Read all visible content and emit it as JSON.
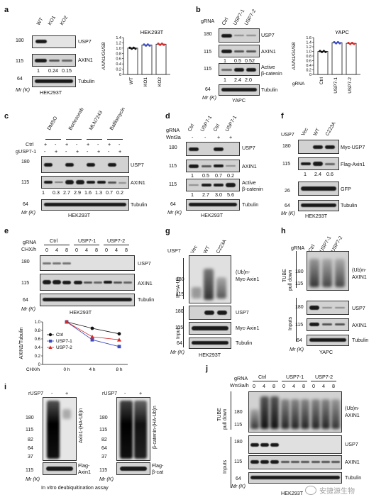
{
  "panels": {
    "a": {
      "letter": "a",
      "lanes": [
        "WT",
        "KO1",
        "KO2"
      ],
      "markers": [
        "180",
        "115",
        "64"
      ],
      "rows": [
        "USP7",
        "AXIN1",
        "Tubulin"
      ],
      "quant": [
        "1",
        "0.24",
        "0.15"
      ],
      "mr": "Mr (K)",
      "cell": "HEK293T",
      "chart_title": "HEK293T",
      "ylabel": "AXIN1/GUSB"
    },
    "b": {
      "letter": "b",
      "grna": "gRNA",
      "lanes": [
        "Ctrl",
        "USP7-1",
        "USP7-2"
      ],
      "markers": [
        "180",
        "115",
        "115",
        "64"
      ],
      "rows": [
        "USP7",
        "AXIN1",
        "Active",
        "β-catenin",
        "Tubulin"
      ],
      "quant1": [
        "1",
        "0.5",
        "0.52"
      ],
      "quant2": [
        "1",
        "2.4",
        "2.0"
      ],
      "mr": "Mr (K)",
      "cell": "YAPC",
      "chart_title": "YAPC",
      "ylabel": "AXIN1/GUSB",
      "xgrna": "gRNA"
    },
    "c": {
      "letter": "c",
      "drugs": [
        "DMSO",
        "Bortezomib",
        "MLN7243",
        "Bafilomycin"
      ],
      "ctrl_label": "Ctrl",
      "g_label": "gUSP7-1",
      "signs_ctrl": [
        "+",
        "-",
        "+",
        "-",
        "+",
        "-",
        "+",
        "-"
      ],
      "signs_g": [
        "-",
        "+",
        "-",
        "+",
        "-",
        "+",
        "-",
        "+"
      ],
      "markers": [
        "180",
        "115",
        "64"
      ],
      "rows": [
        "USP7",
        "AXIN1",
        "Tubulin"
      ],
      "quant": [
        "1",
        "0.3",
        "2.7",
        "2.9",
        "1.6",
        "1.3",
        "0.7",
        "0.2"
      ],
      "mr": "Mr (K)",
      "cell": "HEK293T"
    },
    "d": {
      "letter": "d",
      "grna": "gRNA",
      "wnt": "Wnt3a",
      "lanes": [
        "Ctrl",
        "USP7-1",
        "Ctrl",
        "USP7-1"
      ],
      "wnt_signs": [
        "-",
        "-",
        "+",
        "+"
      ],
      "markers": [
        "180",
        "115",
        "115",
        "64"
      ],
      "rows": [
        "USP7",
        "AXIN1",
        "Active",
        "β-catenin",
        "Tubulin"
      ],
      "quant1": [
        "1",
        "0.5",
        "0.7",
        "0.2"
      ],
      "quant2": [
        "1",
        "2.7",
        "3.0",
        "5.6"
      ],
      "mr": "Mr (K)",
      "cell": "HEK293T"
    },
    "e": {
      "letter": "e",
      "grna": "gRNA",
      "chx": "CHX/h",
      "groups": [
        "Ctrl",
        "USP7-1",
        "USP7-2"
      ],
      "times": [
        "0",
        "4",
        "8",
        "0",
        "4",
        "8",
        "0",
        "4",
        "8"
      ],
      "markers": [
        "180",
        "115",
        "64"
      ],
      "rows": [
        "USP7",
        "AXIN1",
        "Tubulin"
      ],
      "mr": "Mr (K)",
      "cell": "HEK293T",
      "ylabel": "AXIN1/Tubulin",
      "ticks": [
        "1.0",
        "0.8",
        "0.6",
        "0.4",
        "0.2",
        "0"
      ],
      "xticks": [
        "0 h",
        "4 h",
        "8 h"
      ],
      "xlabel": "CHX/h",
      "legend": [
        "Ctrl",
        "USP7-1",
        "USP7-2"
      ]
    },
    "f": {
      "letter": "f",
      "usp7": "USP7",
      "lanes": [
        "Vec",
        "WT",
        "C223A"
      ],
      "markers": [
        "180",
        "115",
        "26",
        "64"
      ],
      "rows": [
        "Myc-USP7",
        "Flag-Axin1",
        "GFP",
        "Tubulin"
      ],
      "quant": [
        "1",
        "2.4",
        "0.6"
      ],
      "mr": "Mr (K)",
      "cell": "HEK293T"
    },
    "g": {
      "letter": "g",
      "usp7": "USP7",
      "lanes": [
        "Vec",
        "WT",
        "C223A"
      ],
      "ip": "IP:HA-Ub",
      "inputs": "Inputs",
      "markers_top": [
        "180",
        "115"
      ],
      "markers_bot": [
        "180",
        "115",
        "64"
      ],
      "ub": "(Ub)n-",
      "ub2": "Myc-Axin1",
      "rows": [
        "USP7",
        "Myc-Axin1",
        "Tubulin"
      ],
      "mr": "Mr (K)",
      "cell": "HEK293T"
    },
    "h": {
      "letter": "h",
      "grna": "gRNA",
      "lanes": [
        "Ctrl",
        "USP7-1",
        "USP7-2"
      ],
      "tube": "TUBE",
      "pulldown": "pull down",
      "inputs": "Inputs",
      "markers_top": [
        "180",
        "115"
      ],
      "markers_bot": [
        "180",
        "115",
        "64"
      ],
      "ub": "(Ub)n-",
      "ub2": "AXIN1",
      "rows": [
        "USP7",
        "AXIN1",
        "Tubulin"
      ],
      "mr": "Mr (K)",
      "cell": "YAPC"
    },
    "i": {
      "letter": "i",
      "rusp7": "rUSP7",
      "signs": [
        "-",
        "+"
      ],
      "markers": [
        "180",
        "115",
        "82",
        "64",
        "37"
      ],
      "markers_b": [
        "115"
      ],
      "left_side": "Axin1-(HA-Ub)n",
      "right_side": "β-catenin-(HA-Ub)n",
      "left_bot1": "Flag-",
      "left_bot2": "Axin1",
      "right_bot1": "Flag-",
      "right_bot2": "β-cat",
      "mr": "Mr (K)",
      "caption": "In vitro deubiquitination assay"
    },
    "j": {
      "letter": "j",
      "grna": "gRNA",
      "wnt": "Wnt3a/h",
      "groups": [
        "Ctrl",
        "USP7-1",
        "USP7-2"
      ],
      "times": [
        "0",
        "4",
        "8",
        "0",
        "4",
        "8",
        "0",
        "4",
        "8"
      ],
      "tube": "TUBE",
      "pulldown": "pull down",
      "inputs": "Inputs",
      "markers_top": [
        "180",
        "115"
      ],
      "markers_bot": [
        "180",
        "115",
        "64"
      ],
      "ub": "(Ub)n-",
      "ub2": "AXIN1",
      "rows": [
        "USP7",
        "AXIN1",
        "Tubulin"
      ],
      "mr": "Mr (K)",
      "cell": "HEK293T"
    }
  },
  "watermark": "安捷源生物",
  "chart_data": [
    {
      "type": "bar",
      "title": "HEK293T",
      "ylabel": "AXIN1/GUSB",
      "categories": [
        "WT",
        "KO1",
        "KO2"
      ],
      "values": [
        1.0,
        1.12,
        1.15
      ],
      "ylim": [
        0,
        1.4
      ],
      "yticks": [
        "0",
        "0.2",
        "0.4",
        "0.6",
        "0.8",
        "1.0",
        "1.2",
        "1.4"
      ],
      "colors": [
        "#111111",
        "#3b4bbf",
        "#d42a2a"
      ]
    },
    {
      "type": "bar",
      "title": "YAPC",
      "ylabel": "AXIN1/GUSB",
      "categories": [
        "Ctrl",
        "USP7-1",
        "USP7-2"
      ],
      "values": [
        1.0,
        1.38,
        1.35
      ],
      "ylim": [
        0,
        1.6
      ],
      "yticks": [
        "0",
        "0.2",
        "0.4",
        "0.6",
        "0.8",
        "1.0",
        "1.2",
        "1.4",
        "1.6"
      ],
      "colors": [
        "#111111",
        "#3b4bbf",
        "#d42a2a"
      ]
    },
    {
      "type": "line",
      "ylabel": "AXIN1/Tubulin",
      "xlabel": "CHX/h",
      "x": [
        "0 h",
        "4 h",
        "8 h"
      ],
      "ylim": [
        0,
        1.0
      ],
      "series": [
        {
          "name": "Ctrl",
          "values": [
            1.0,
            0.85,
            0.72
          ],
          "color": "#111111"
        },
        {
          "name": "USP7-1",
          "values": [
            1.0,
            0.58,
            0.42
          ],
          "color": "#3b4bbf"
        },
        {
          "name": "USP7-2",
          "values": [
            1.0,
            0.65,
            0.58
          ],
          "color": "#d42a2a"
        }
      ]
    }
  ]
}
